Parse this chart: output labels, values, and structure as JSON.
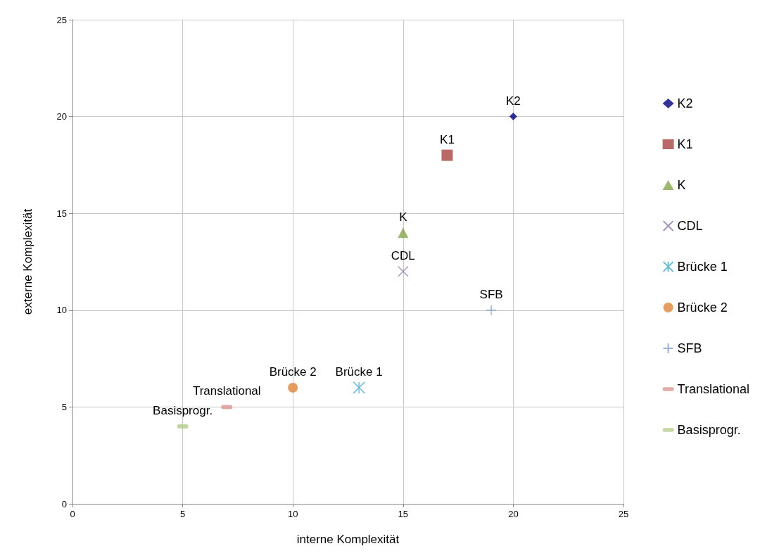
{
  "chart_data": {
    "type": "scatter",
    "xlabel": "interne Komplexität",
    "ylabel": "externe Komplexität",
    "xlim": [
      0,
      25
    ],
    "ylim": [
      0,
      25
    ],
    "xticks": [
      0,
      5,
      10,
      15,
      20,
      25
    ],
    "yticks": [
      0,
      5,
      10,
      15,
      20,
      25
    ],
    "grid": true,
    "legend": "right",
    "annotations": [
      {
        "text": "K2",
        "x": 20,
        "y": 20
      },
      {
        "text": "K1",
        "x": 17,
        "y": 18
      },
      {
        "text": "K",
        "x": 15,
        "y": 14
      },
      {
        "text": "CDL",
        "x": 15,
        "y": 12
      },
      {
        "text": "Brücke 1",
        "x": 13,
        "y": 6
      },
      {
        "text": "Brücke 2",
        "x": 10,
        "y": 6
      },
      {
        "text": "SFB",
        "x": 19,
        "y": 10
      },
      {
        "text": "Translational",
        "x": 7,
        "y": 5
      },
      {
        "text": "Basisprogr.",
        "x": 5,
        "y": 4
      }
    ],
    "series": [
      {
        "name": "K2",
        "color": "#000080",
        "marker": "diamond",
        "x": [
          20
        ],
        "values": [
          20
        ]
      },
      {
        "name": "K1",
        "color": "#a94442",
        "marker": "square",
        "x": [
          17
        ],
        "values": [
          18
        ]
      },
      {
        "name": "K",
        "color": "#86a44a",
        "marker": "triangle",
        "x": [
          15
        ],
        "values": [
          14
        ]
      },
      {
        "name": "CDL",
        "color": "#8f7cab",
        "marker": "x",
        "x": [
          15
        ],
        "values": [
          12
        ]
      },
      {
        "name": "Brücke 1",
        "color": "#4aacc5",
        "marker": "cross",
        "x": [
          13
        ],
        "values": [
          6
        ]
      },
      {
        "name": "Brücke 2",
        "color": "#e0843a",
        "marker": "circle",
        "x": [
          10
        ],
        "values": [
          6
        ]
      },
      {
        "name": "SFB",
        "color": "#7f9fd0",
        "marker": "plus",
        "x": [
          19
        ],
        "values": [
          10
        ]
      },
      {
        "name": "Translational",
        "color": "#d99694",
        "x": [
          7
        ],
        "values": [
          5
        ]
      },
      {
        "name": "Basisprogr.",
        "color": "#b5cc8a",
        "x": [
          5
        ],
        "values": [
          4
        ]
      }
    ]
  }
}
